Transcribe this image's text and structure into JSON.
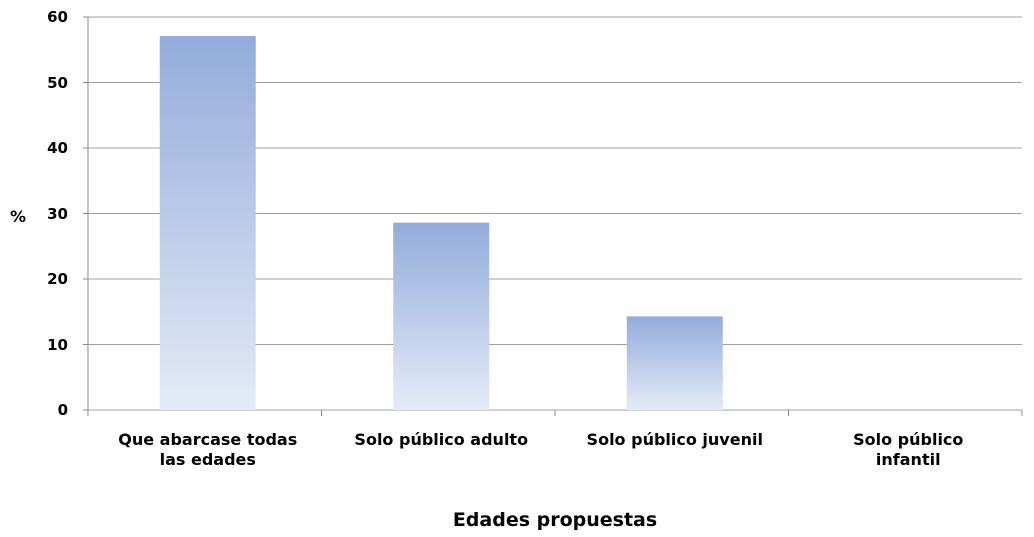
{
  "chart_data": {
    "type": "bar",
    "categories": [
      "Que abarcase todas las edades",
      "Solo público adulto",
      "Solo público juvenil",
      "Solo público infantil"
    ],
    "values": [
      57.1,
      28.6,
      14.3,
      0
    ],
    "ylim": [
      0,
      60
    ],
    "yticks": [
      0,
      10,
      20,
      30,
      40,
      50,
      60
    ],
    "grid": true,
    "y_label": "%",
    "x_label": "Edades propuestas",
    "color": "#93acdb"
  }
}
